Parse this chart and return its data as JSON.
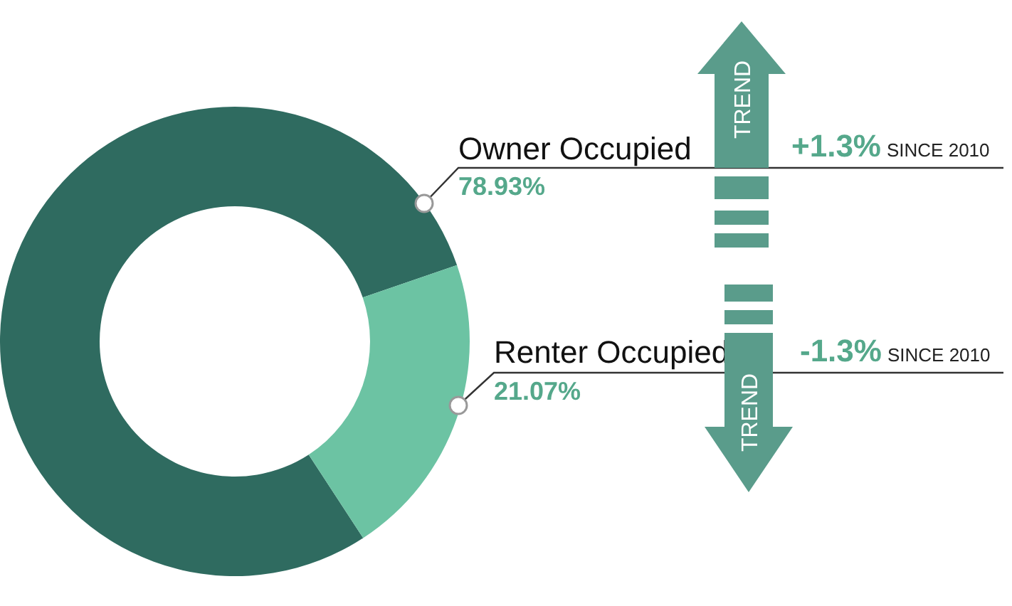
{
  "chart_data": {
    "type": "donut",
    "categories": [
      "Owner Occupied",
      "Renter Occupied"
    ],
    "values": [
      78.93,
      21.07
    ],
    "colors": [
      "#2f6b60",
      "#6cc3a3"
    ],
    "value_labels": [
      "78.93%",
      "21.07%"
    ],
    "annotations": [
      "+1.3% SINCE 2010",
      "TREND",
      "-1.3% SINCE 2010",
      "TREND"
    ]
  }
}
